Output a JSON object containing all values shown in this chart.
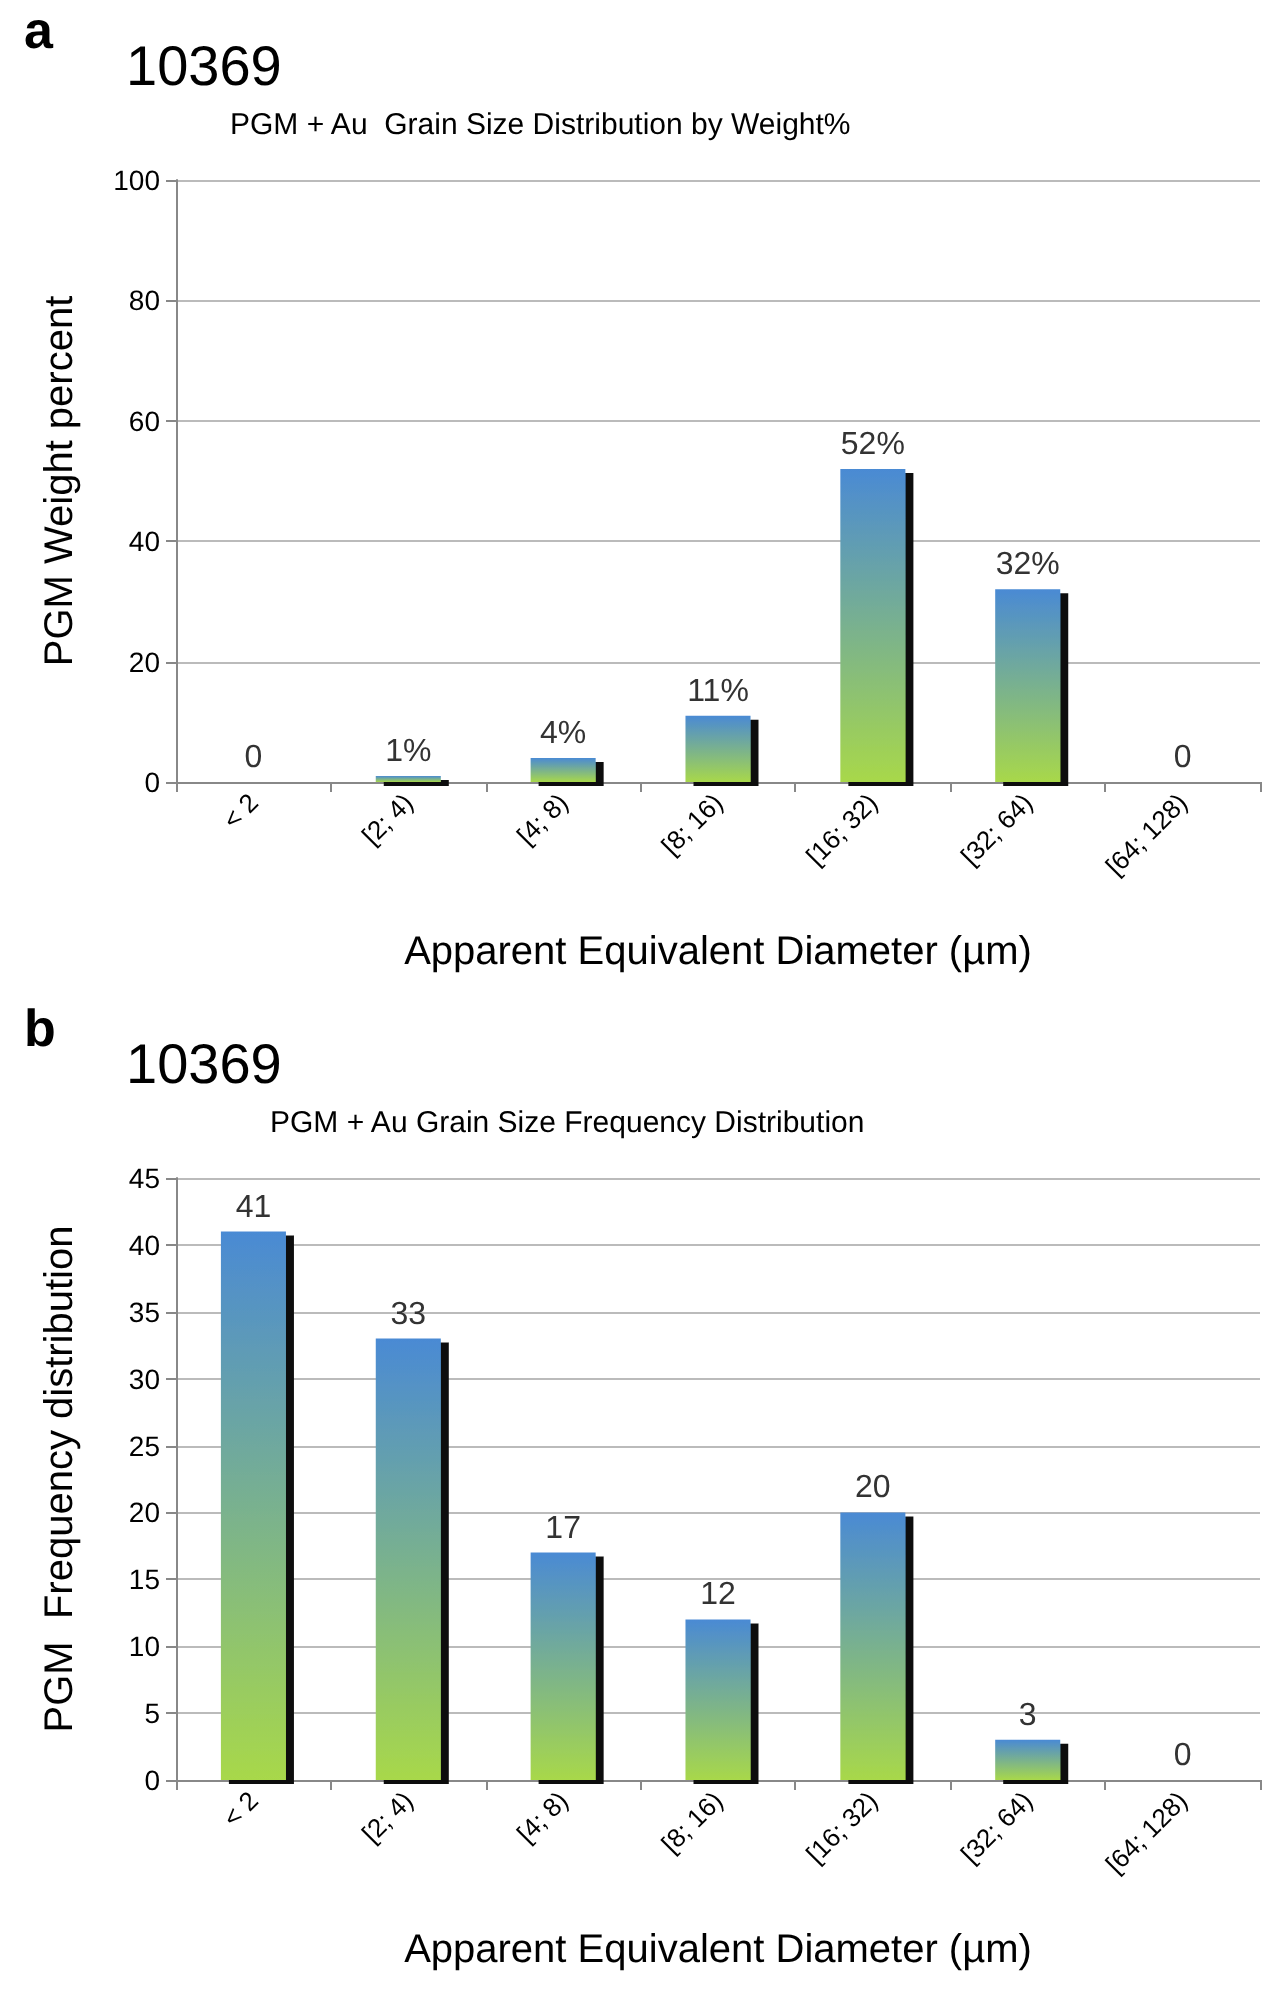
{
  "chart_data": [
    {
      "type": "bar",
      "title": "10369",
      "subtitle": "PGM + Au  Grain Size Distribution by Weight%",
      "annotations": [
        "a"
      ],
      "xlabel": "Apparent Equivalent Diameter (µm)",
      "ylabel": "PGM Weight percent",
      "categories": [
        "< 2",
        "[2; 4)",
        "[4; 8)",
        "[8; 16)",
        "[16; 32)",
        "[32; 64)",
        "[64; 128)"
      ],
      "values": [
        0,
        1,
        4,
        11,
        52,
        32,
        0
      ],
      "value_labels": [
        "0",
        "1%",
        "4%",
        "11%",
        "52%",
        "32%",
        "0"
      ],
      "color": "#4a8ad4",
      "ylim": [
        0,
        100
      ],
      "yticks": [
        0,
        20,
        40,
        60,
        80,
        100
      ],
      "grid": "y"
    },
    {
      "type": "bar",
      "title": "10369",
      "subtitle": "PGM + Au Grain Size Frequency Distribution",
      "annotations": [
        "b"
      ],
      "xlabel": "Apparent Equivalent Diameter (µm)",
      "ylabel": "PGM  Frequency distribution",
      "categories": [
        "< 2",
        "[2; 4)",
        "[4; 8)",
        "[8; 16)",
        "[16; 32)",
        "[32; 64)",
        "[64; 128)"
      ],
      "values": [
        41,
        33,
        17,
        12,
        20,
        3,
        0
      ],
      "data_labels": true,
      "color": "#4a8ad4",
      "ylim": [
        0,
        45
      ],
      "yticks": [
        0,
        5,
        10,
        15,
        20,
        25,
        30,
        35,
        40,
        45
      ],
      "grid": "y"
    }
  ]
}
